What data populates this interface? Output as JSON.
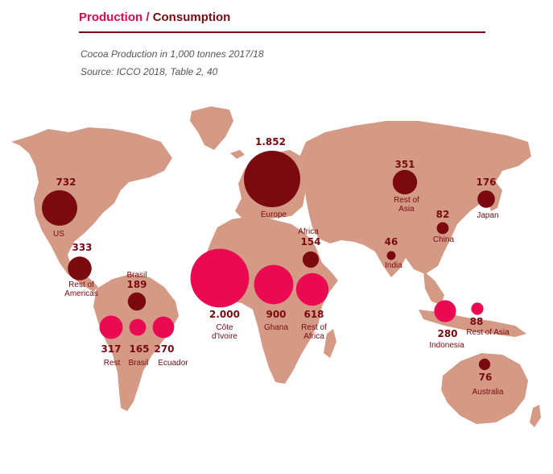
{
  "header": {
    "production": "Production",
    "separator": " / ",
    "consumption": "Consumption",
    "subtitle": "Cocoa Production in 1,000 tonnes 2017/18",
    "source": "Source: ICCO 2018, Table 2, 40"
  },
  "colors": {
    "land": "#d49a85",
    "production": "#ea0a52",
    "consumption": "#7a0a10",
    "text_dark": "#7a0a10",
    "text_pink": "#e8004f"
  },
  "markers": [
    {
      "id": "us",
      "type": "consumption",
      "value": 732,
      "value_text": "732",
      "label": [
        "US"
      ]
    },
    {
      "id": "rest-of-americas",
      "type": "consumption",
      "value": 333,
      "value_text": "333",
      "label": [
        "Rest of",
        "Americas"
      ]
    },
    {
      "id": "brasil-consumption",
      "type": "consumption",
      "value": 189,
      "value_text": "189",
      "label": [
        "Brasil"
      ]
    },
    {
      "id": "europe",
      "type": "consumption",
      "value": 1852,
      "value_text": "1.852",
      "label": [
        "Europe"
      ]
    },
    {
      "id": "africa-consumption",
      "type": "consumption",
      "value": 154,
      "value_text": "154",
      "label": [
        "Africa"
      ]
    },
    {
      "id": "rest-of-asia-consumption",
      "type": "consumption",
      "value": 351,
      "value_text": "351",
      "label": [
        "Rest of",
        "Asia"
      ]
    },
    {
      "id": "india",
      "type": "consumption",
      "value": 46,
      "value_text": "46",
      "label": [
        "India"
      ]
    },
    {
      "id": "china",
      "type": "consumption",
      "value": 82,
      "value_text": "82",
      "label": [
        "China"
      ]
    },
    {
      "id": "japan",
      "type": "consumption",
      "value": 176,
      "value_text": "176",
      "label": [
        "Japan"
      ]
    },
    {
      "id": "australia",
      "type": "consumption",
      "value": 76,
      "value_text": "76",
      "label": [
        "Australia"
      ]
    },
    {
      "id": "rest-americas-production",
      "type": "production",
      "value": 317,
      "value_text": "317",
      "label": [
        "Rest"
      ]
    },
    {
      "id": "brasil-production",
      "type": "production",
      "value": 165,
      "value_text": "165",
      "label": [
        "Brasil"
      ]
    },
    {
      "id": "ecuador",
      "type": "production",
      "value": 270,
      "value_text": "270",
      "label": [
        "Ecuador"
      ]
    },
    {
      "id": "cote-divoire",
      "type": "production",
      "value": 2000,
      "value_text": "2.000",
      "label": [
        "Côte",
        "d'Ivoire"
      ]
    },
    {
      "id": "ghana",
      "type": "production",
      "value": 900,
      "value_text": "900",
      "label": [
        "Ghana"
      ]
    },
    {
      "id": "rest-of-africa",
      "type": "production",
      "value": 618,
      "value_text": "618",
      "label": [
        "Rest of",
        "Africa"
      ]
    },
    {
      "id": "indonesia",
      "type": "production",
      "value": 280,
      "value_text": "280",
      "label": [
        "Indonesia"
      ]
    },
    {
      "id": "rest-of-asia-production",
      "type": "production",
      "value": 88,
      "value_text": "88",
      "label": [
        "Rest of Asia"
      ]
    }
  ]
}
